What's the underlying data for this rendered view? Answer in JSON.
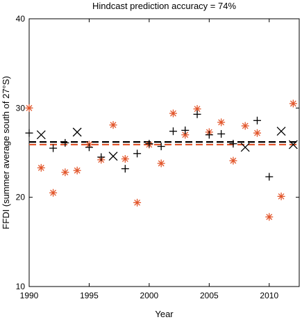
{
  "chart_data": {
    "type": "scatter",
    "title": "Hindcast prediction accuracy = 74%",
    "xlabel": "Year",
    "ylabel": "FFDI (summer average south of 27°S)",
    "xlim": [
      1990,
      2012.5
    ],
    "ylim": [
      10,
      40
    ],
    "xticks": [
      1990,
      1995,
      2000,
      2005,
      2010
    ],
    "yticks": [
      10,
      20,
      30,
      40
    ],
    "grid": false,
    "colors": {
      "observed": "#e2552a",
      "predicted": "#000000",
      "axes": "#000000"
    },
    "series": [
      {
        "marker": "asterisk",
        "color": "#e2552a",
        "x": [
          1990,
          1991,
          1992,
          1993,
          1994,
          1995,
          1996,
          1997,
          1998,
          1999,
          2000,
          2001,
          2002,
          2003,
          2004,
          2005,
          2006,
          2007,
          2008,
          2009,
          2010,
          2011,
          2012
        ],
        "y": [
          30.0,
          23.3,
          20.5,
          22.8,
          23.0,
          25.9,
          24.2,
          28.1,
          24.3,
          19.4,
          25.9,
          23.8,
          29.4,
          27.0,
          29.9,
          27.3,
          28.4,
          24.1,
          28.0,
          27.2,
          17.8,
          20.1,
          30.5
        ]
      },
      {
        "marker": "plus",
        "color": "#000000",
        "x": [
          1990,
          1992,
          1993,
          1995,
          1996,
          1998,
          1999,
          2000,
          2001,
          2002,
          2003,
          2004,
          2005,
          2006,
          2007,
          2009,
          2010
        ],
        "y": [
          27.2,
          25.5,
          26.1,
          25.6,
          24.5,
          23.2,
          24.9,
          26.0,
          25.7,
          27.4,
          27.5,
          29.3,
          27.0,
          27.1,
          26.0,
          28.6,
          22.3
        ]
      },
      {
        "marker": "x",
        "color": "#000000",
        "x": [
          1991,
          1994,
          1997,
          2008,
          2011,
          2012
        ],
        "y": [
          27.0,
          27.3,
          24.6,
          25.6,
          27.4,
          25.9
        ]
      }
    ],
    "reference_lines": [
      {
        "y": 26.2,
        "color": "#000000",
        "style": "dashed"
      },
      {
        "y": 25.9,
        "color": "#e2552a",
        "style": "dashed"
      }
    ]
  }
}
